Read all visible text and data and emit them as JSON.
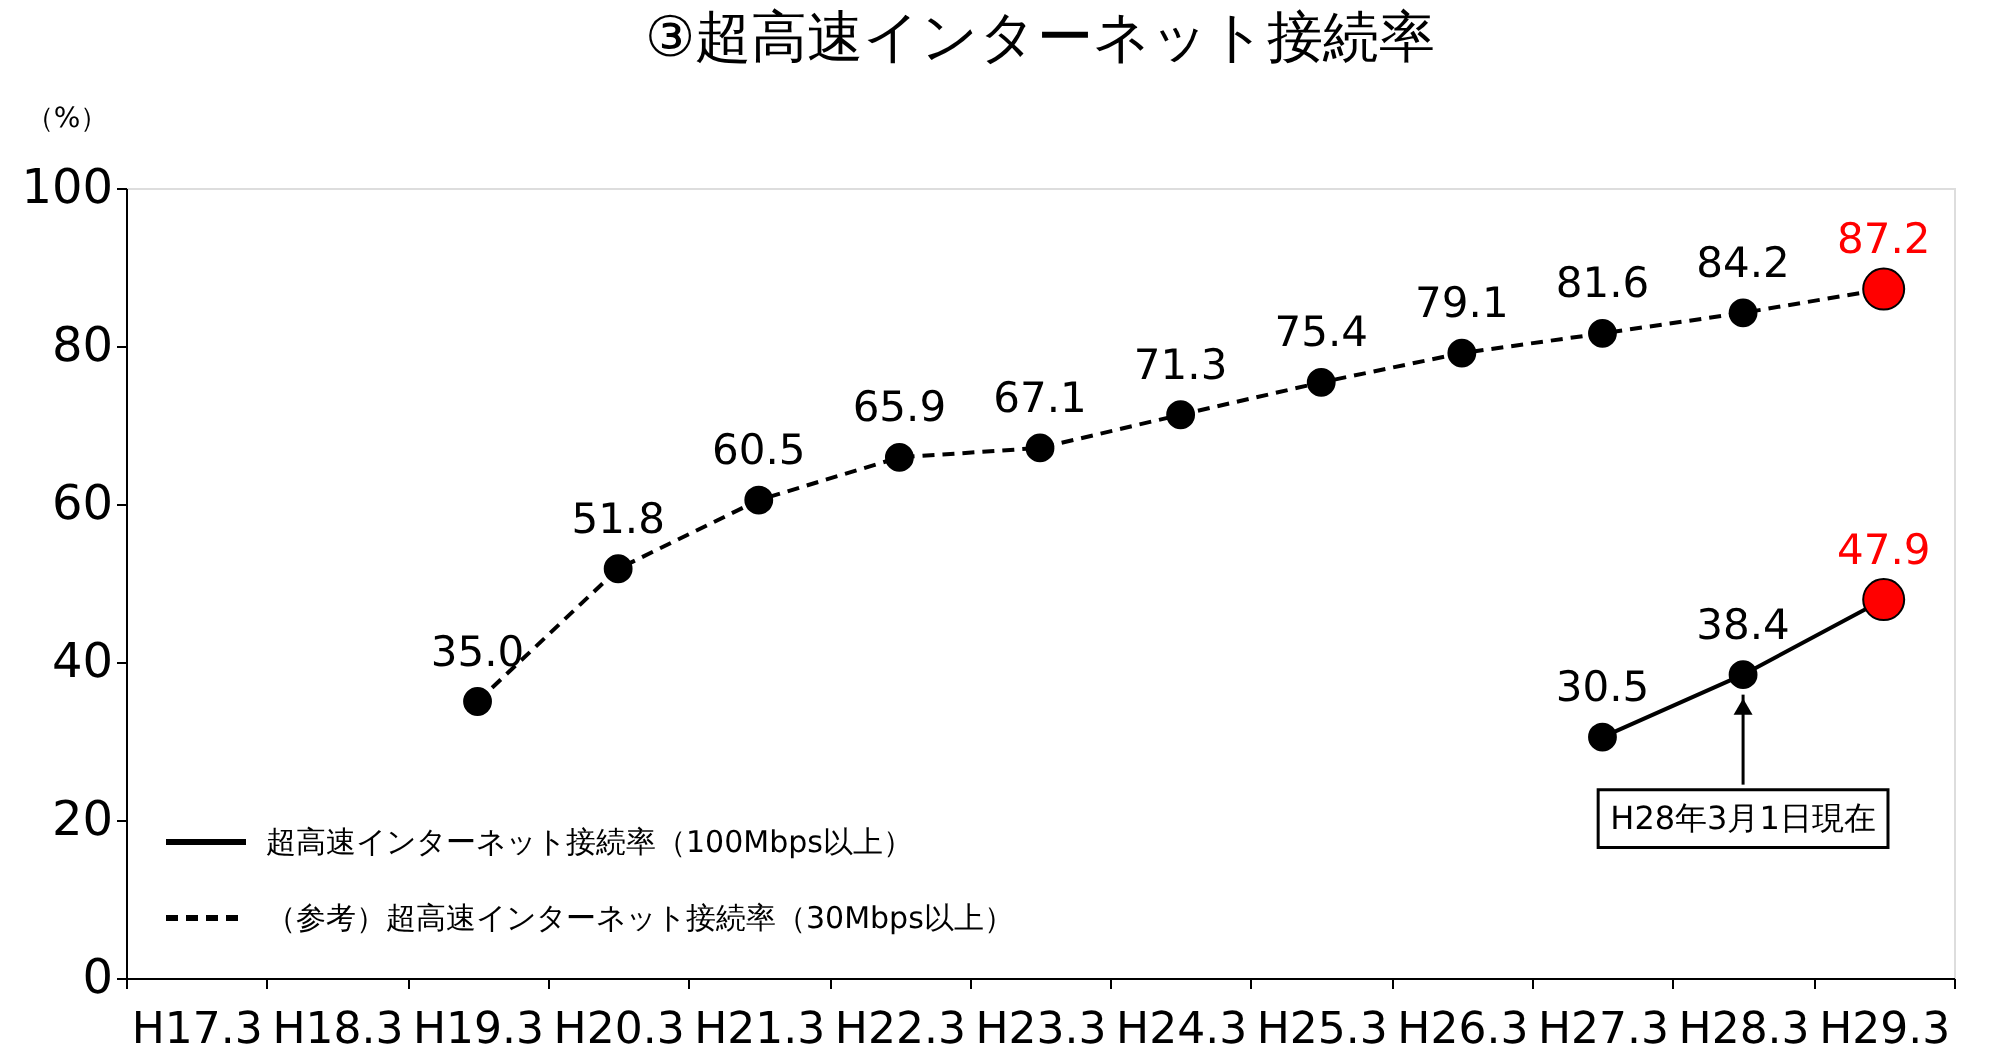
{
  "chart_data": {
    "type": "line",
    "title": "③超高速インターネット接続率",
    "ylabel": "（%）",
    "categories": [
      "H17.3",
      "H18.3",
      "H19.3",
      "H20.3",
      "H21.3",
      "H22.3",
      "H23.3",
      "H24.3",
      "H25.3",
      "H26.3",
      "H27.3",
      "H28.3",
      "H29.3"
    ],
    "ylim": [
      0,
      100
    ],
    "yticks": [
      0,
      20,
      40,
      60,
      80,
      100
    ],
    "grid": false,
    "legend": "bottom left",
    "marker": "circle",
    "series": [
      {
        "name": "超高速インターネット接続率（100Mbps以上）",
        "color": "#000000",
        "line_style": "solid",
        "values": [
          null,
          null,
          null,
          null,
          null,
          null,
          null,
          null,
          null,
          null,
          30.5,
          38.4,
          47.9
        ],
        "colors": [
          null,
          null,
          null,
          null,
          null,
          null,
          null,
          null,
          null,
          null,
          "#000000",
          "#000000",
          "#ff0000"
        ],
        "value_labels": [
          null,
          null,
          null,
          null,
          null,
          null,
          null,
          null,
          null,
          null,
          "30.5",
          "38.4",
          "47.9"
        ]
      },
      {
        "name": "（参考）超高速インターネット接続率（30Mbps以上）",
        "color": "#000000",
        "line_style": "dashed",
        "values": [
          null,
          null,
          35.0,
          51.8,
          60.5,
          65.9,
          67.1,
          71.3,
          75.4,
          79.1,
          81.6,
          84.2,
          87.2
        ],
        "colors": [
          null,
          null,
          "#000000",
          "#000000",
          "#000000",
          "#000000",
          "#000000",
          "#000000",
          "#000000",
          "#000000",
          "#000000",
          "#000000",
          "#ff0000"
        ],
        "value_labels": [
          null,
          null,
          "35.0",
          "51.8",
          "60.5",
          "65.9",
          "67.1",
          "71.3",
          "75.4",
          "79.1",
          "81.6",
          "84.2",
          "87.2"
        ]
      }
    ],
    "annotations": [
      "H28年3月1日現在"
    ]
  }
}
